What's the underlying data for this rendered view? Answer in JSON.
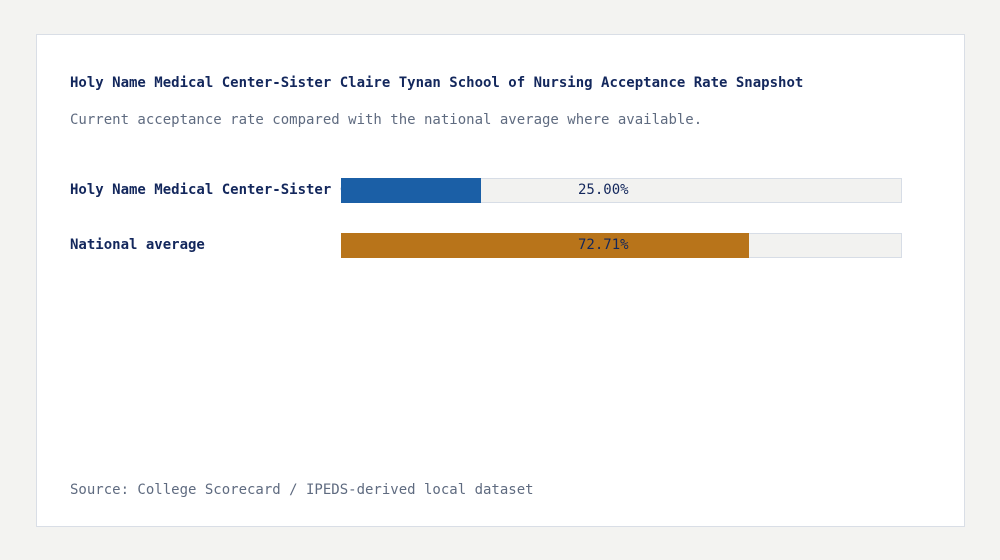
{
  "card": {
    "title": "Holy Name Medical Center-Sister Claire Tynan School of Nursing Acceptance Rate Snapshot",
    "subtitle": "Current acceptance rate compared with the national average where available.",
    "source": "Source: College Scorecard / IPEDS-derived local dataset"
  },
  "rows": [
    {
      "label": "Holy Name Medical Center-Sister Claire Tynan School of Nursing",
      "value_label": "25.00%",
      "value": 25.0,
      "color": "#1b5fa6"
    },
    {
      "label": "National average",
      "value_label": "72.71%",
      "value": 72.71,
      "color": "#b8741a"
    }
  ],
  "chart_data": {
    "type": "bar",
    "orientation": "horizontal",
    "title": "Holy Name Medical Center-Sister Claire Tynan School of Nursing Acceptance Rate Snapshot",
    "subtitle": "Current acceptance rate compared with the national average where available.",
    "categories": [
      "Holy Name Medical Center-Sister Claire Tynan School of Nursing",
      "National average"
    ],
    "values": [
      25.0,
      72.71
    ],
    "value_labels": [
      "25.00%",
      "72.71%"
    ],
    "colors": [
      "#1b5fa6",
      "#b8741a"
    ],
    "xlabel": "",
    "ylabel": "",
    "xlim": [
      0,
      100
    ],
    "grid": false,
    "legend": false,
    "footnote": "Source: College Scorecard / IPEDS-derived local dataset"
  }
}
